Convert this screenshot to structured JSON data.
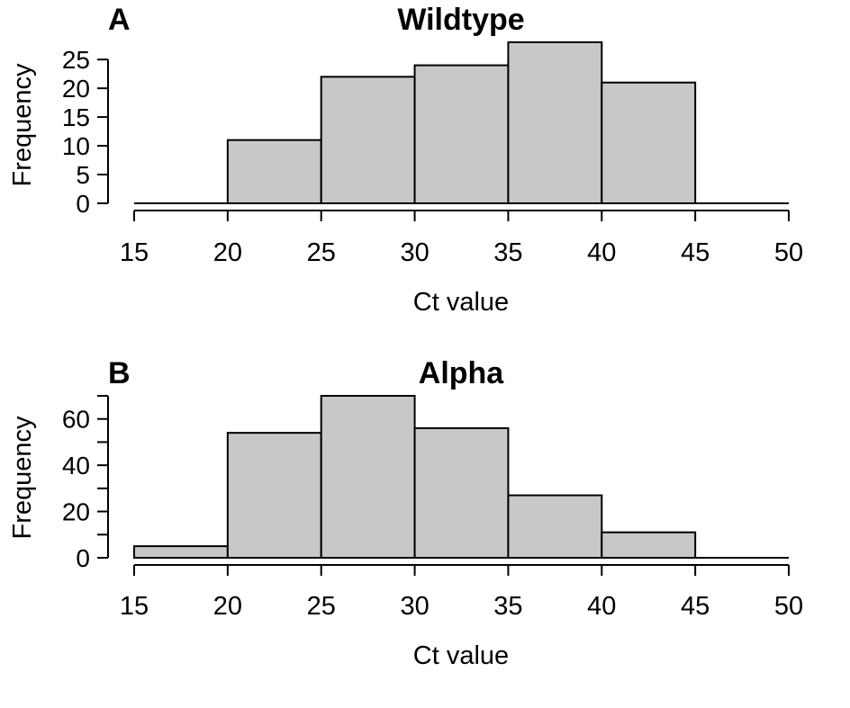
{
  "chart_data": [
    {
      "type": "bar",
      "panel_label": "A",
      "title": "Wildtype",
      "xlabel": "Ct value",
      "ylabel": "Frequency",
      "bin_edges": [
        15,
        20,
        25,
        30,
        35,
        40,
        45,
        50
      ],
      "values": [
        0,
        11,
        22,
        24,
        28,
        21,
        0
      ],
      "xlim": [
        15,
        50
      ],
      "ylim": [
        0,
        28
      ],
      "xticks": [
        15,
        20,
        25,
        30,
        35,
        40,
        45,
        50
      ],
      "yticks": [
        0,
        5,
        10,
        15,
        20,
        25
      ],
      "grid": false,
      "bar_color": "#c8c8c8"
    },
    {
      "type": "bar",
      "panel_label": "B",
      "title": "Alpha",
      "xlabel": "Ct value",
      "ylabel": "Frequency",
      "bin_edges": [
        15,
        20,
        25,
        30,
        35,
        40,
        45,
        50
      ],
      "values": [
        5,
        54,
        70,
        56,
        27,
        11,
        0
      ],
      "xlim": [
        15,
        50
      ],
      "ylim": [
        0,
        70
      ],
      "xticks": [
        15,
        20,
        25,
        30,
        35,
        40,
        45,
        50
      ],
      "yticks": [
        0,
        20,
        40,
        60
      ],
      "yticks_minor": [
        10,
        30,
        50,
        70
      ],
      "grid": false,
      "bar_color": "#c8c8c8"
    }
  ]
}
